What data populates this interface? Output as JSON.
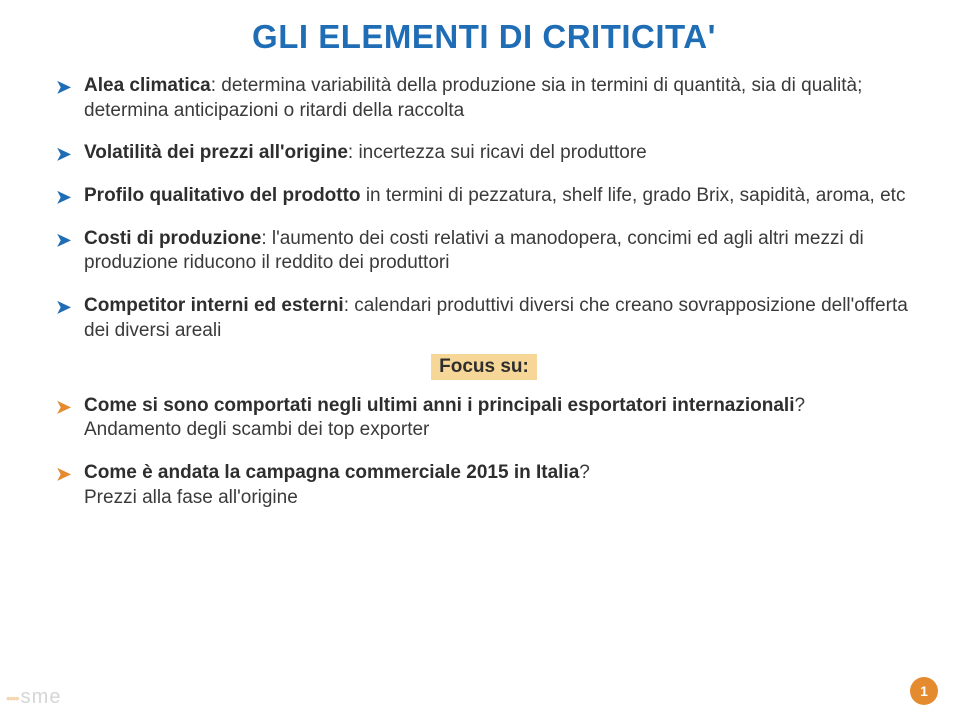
{
  "title": "GLI ELEMENTI DI CRITICITA'",
  "colors": {
    "title": "#1f6db5",
    "arrow_blue": "#1f6db5",
    "arrow_orange": "#e58b2f",
    "focus_bg": "#f6d797",
    "pagenum_bg": "#e58b2f",
    "body_text": "#3a3a3a"
  },
  "bullets": [
    {
      "arrow_color": "blue",
      "lead": "Alea climatica",
      "rest": ": determina variabilità della produzione sia in termini di quantità, sia di qualità; determina anticipazioni o ritardi della raccolta"
    },
    {
      "arrow_color": "blue",
      "lead": "Volatilità dei prezzi all'origine",
      "rest": ": incertezza sui ricavi del produttore"
    },
    {
      "arrow_color": "blue",
      "lead": "Profilo qualitativo del prodotto",
      "rest": " in termini di pezzatura, shelf life, grado Brix, sapidità, aroma, etc"
    },
    {
      "arrow_color": "blue",
      "lead": "Costi di produzione",
      "rest": ": l'aumento dei costi relativi a manodopera, concimi ed agli altri mezzi di produzione riducono il reddito dei produttori"
    },
    {
      "arrow_color": "blue",
      "lead": "Competitor interni ed esterni",
      "rest": ": calendari produttivi diversi che creano sovrapposizione dell'offerta dei diversi areali"
    }
  ],
  "focus_label": "Focus su:",
  "q1": {
    "lead": "Come si sono comportati negli ultimi anni i principali esportatori internazionali",
    "qmark": "?",
    "follow": "Andamento degli scambi dei top exporter"
  },
  "q2": {
    "lead": "Come è andata la campagna commerciale 2015 in Italia",
    "qmark": "?",
    "follow": "Prezzi alla fase all'origine"
  },
  "page_number": "1",
  "logo_brand": "sme"
}
